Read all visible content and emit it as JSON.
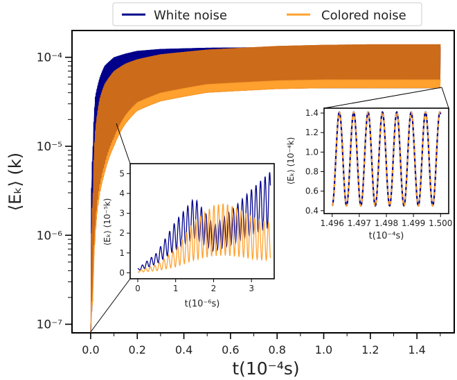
{
  "colors": {
    "white_noise": "#00008b",
    "colored_noise": "#ffa12e",
    "colored_fill": "#cc6b1a",
    "axes": "#000000"
  },
  "legend": {
    "placement": "top-center",
    "entries": [
      "White noise",
      "Colored noise"
    ]
  },
  "chart_data": [
    {
      "id": "main",
      "type": "line",
      "yscale": "log",
      "xlabel": "t(10⁻⁴s)",
      "ylabel": "⟨Eₖ⟩ (k)",
      "xlim": [
        -0.08,
        1.56
      ],
      "ylim": [
        8e-08,
        0.0002
      ],
      "xticks": [
        0.0,
        0.2,
        0.4,
        0.6,
        0.8,
        1.0,
        1.2,
        1.4
      ],
      "xtick_labels": [
        "0.0",
        "0.2",
        "0.4",
        "0.6",
        "0.8",
        "1.0",
        "1.2",
        "1.4"
      ],
      "yticks": [
        1e-07,
        1e-06,
        1e-05,
        0.0001
      ],
      "ytick_labels": [
        "10⁻⁷",
        "10⁻⁶",
        "10⁻⁵",
        "10⁻⁴"
      ],
      "series": [
        {
          "name": "White noise",
          "x": [
            0.0,
            0.01,
            0.02,
            0.04,
            0.06,
            0.1,
            0.15,
            0.2,
            0.3,
            0.5,
            0.8,
            1.0,
            1.2,
            1.5
          ],
          "y_upper": [
            8e-08,
            1e-05,
            3.6e-05,
            6e-05,
            8e-05,
            0.0001,
            0.00011,
            0.000118,
            0.000124,
            0.000128,
            0.00013,
            0.00013,
            0.00013,
            0.00013
          ],
          "y_lower": [
            8e-08,
            2e-07,
            3e-06,
            1.5e-05,
            2.5e-05,
            3.3e-05,
            3.8e-05,
            4e-05,
            4.2e-05,
            4.4e-05,
            4.5e-05,
            4.5e-05,
            4.5e-05,
            4.5e-05
          ]
        },
        {
          "name": "Colored noise",
          "x": [
            0.0,
            0.01,
            0.02,
            0.04,
            0.06,
            0.1,
            0.15,
            0.2,
            0.3,
            0.5,
            0.8,
            1.0,
            1.2,
            1.5
          ],
          "y_upper": [
            8e-08,
            3e-06,
            1.5e-05,
            3.5e-05,
            5e-05,
            7e-05,
            8.5e-05,
            9.5e-05,
            0.000108,
            0.000122,
            0.000134,
            0.000138,
            0.00014,
            0.00014
          ],
          "y_lower": [
            8e-08,
            2e-07,
            1e-06,
            3e-06,
            5e-06,
            1e-05,
            1.8e-05,
            2.5e-05,
            3.2e-05,
            4e-05,
            4.4e-05,
            4.5e-05,
            4.5e-05,
            4.5e-05
          ]
        }
      ]
    },
    {
      "id": "inset-early",
      "type": "line",
      "xlabel": "t(10⁻⁶s)",
      "ylabel": "⟨Eₖ⟩ (10⁻⁵k)",
      "xlim": [
        -0.2,
        3.6
      ],
      "ylim": [
        -0.3,
        5.5
      ],
      "xticks": [
        0,
        1,
        2,
        3
      ],
      "xtick_labels": [
        "0",
        "1",
        "2",
        "3"
      ],
      "yticks": [
        0,
        1,
        2,
        3,
        4,
        5
      ],
      "ytick_labels": [
        "0",
        "1",
        "2",
        "3",
        "4",
        "5"
      ],
      "series": [
        {
          "name": "White noise",
          "period": 0.12,
          "envelope_t": [
            0.0,
            0.5,
            1.0,
            1.5,
            2.0,
            2.5,
            3.0,
            3.5
          ],
          "envelope_max": [
            0.2,
            1.0,
            2.6,
            3.8,
            2.4,
            3.2,
            4.2,
            5.1
          ]
        },
        {
          "name": "Colored noise",
          "period": 0.12,
          "envelope_t": [
            0.0,
            0.5,
            1.0,
            1.5,
            2.0,
            2.3,
            2.7,
            3.0,
            3.5
          ],
          "envelope_max": [
            0.1,
            0.4,
            1.2,
            2.6,
            3.4,
            3.5,
            3.2,
            2.8,
            2.5
          ]
        }
      ]
    },
    {
      "id": "inset-late",
      "type": "line",
      "xlabel": "t(10⁻⁴s)",
      "ylabel": "⟨Eₖ⟩ (10⁻⁴k)",
      "xlim": [
        1.4957,
        1.5003
      ],
      "ylim": [
        0.37,
        1.45
      ],
      "xticks": [
        1.496,
        1.497,
        1.498,
        1.499,
        1.5
      ],
      "xtick_labels": [
        "1.496",
        "1.497",
        "1.498",
        "1.499",
        "1.500"
      ],
      "yticks": [
        0.4,
        0.6,
        0.8,
        1.0,
        1.2,
        1.4
      ],
      "ytick_labels": [
        "0.4",
        "0.6",
        "0.8",
        "1.0",
        "1.2",
        "1.4"
      ],
      "series": [
        {
          "name": "White noise",
          "x_start": 1.496,
          "x_end": 1.5,
          "oscillation_period": 0.00053,
          "min": 0.45,
          "max": 1.41
        },
        {
          "name": "Colored noise",
          "x_start": 1.496,
          "x_end": 1.5,
          "oscillation_period": 0.00053,
          "min": 0.45,
          "max": 1.41
        }
      ]
    }
  ]
}
